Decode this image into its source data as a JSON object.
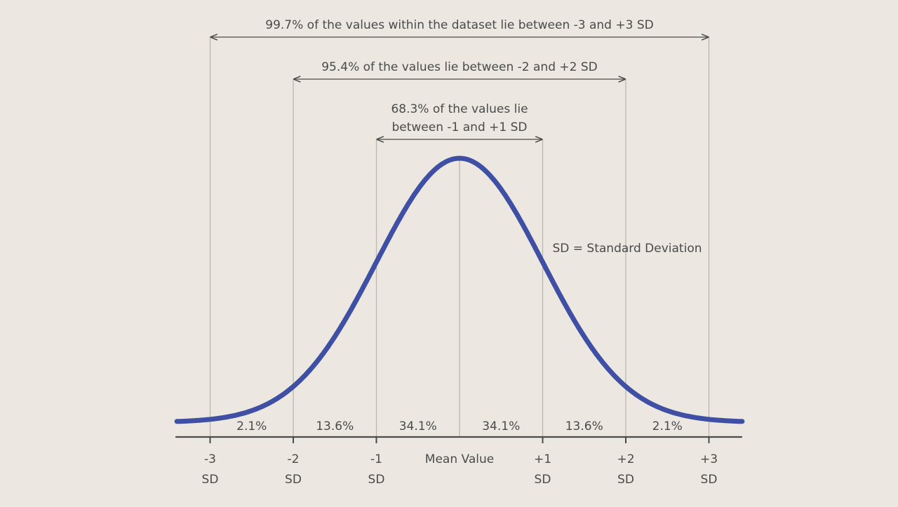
{
  "chart_data": {
    "type": "area",
    "x_ticks": [
      {
        "value": -3,
        "line1": "-3",
        "line2": "SD"
      },
      {
        "value": -2,
        "line1": "-2",
        "line2": "SD"
      },
      {
        "value": -1,
        "line1": "-1",
        "line2": "SD"
      },
      {
        "value": 0,
        "line1": "Mean Value",
        "line2": ""
      },
      {
        "value": 1,
        "line1": "+1",
        "line2": "SD"
      },
      {
        "value": 2,
        "line1": "+2",
        "line2": "SD"
      },
      {
        "value": 3,
        "line1": "+3",
        "line2": "SD"
      }
    ],
    "segments": [
      {
        "from": -3,
        "to": -2,
        "label": "2.1%"
      },
      {
        "from": -2,
        "to": -1,
        "label": "13.6%"
      },
      {
        "from": -1,
        "to": 0,
        "label": "34.1%"
      },
      {
        "from": 0,
        "to": 1,
        "label": "34.1%"
      },
      {
        "from": 1,
        "to": 2,
        "label": "13.6%"
      },
      {
        "from": 2,
        "to": 3,
        "label": "2.1%"
      }
    ],
    "ranges": [
      {
        "from": -3,
        "to": 3,
        "label_lines": [
          "99.7% of the values within the dataset lie between -3 and +3 SD"
        ]
      },
      {
        "from": -2,
        "to": 2,
        "label_lines": [
          "95.4% of the values lie between -2 and +2 SD"
        ]
      },
      {
        "from": -1,
        "to": 1,
        "label_lines": [
          "68.3% of the values lie",
          "between -1 and +1 SD"
        ]
      }
    ],
    "annotation": "SD = Standard Deviation",
    "curve": "normal distribution",
    "xlim": [
      -3.4,
      3.4
    ],
    "curve_color": "#3f4fa3",
    "axis_color": "#4a4a4a",
    "grid_line_color": "#b9b6b0"
  }
}
